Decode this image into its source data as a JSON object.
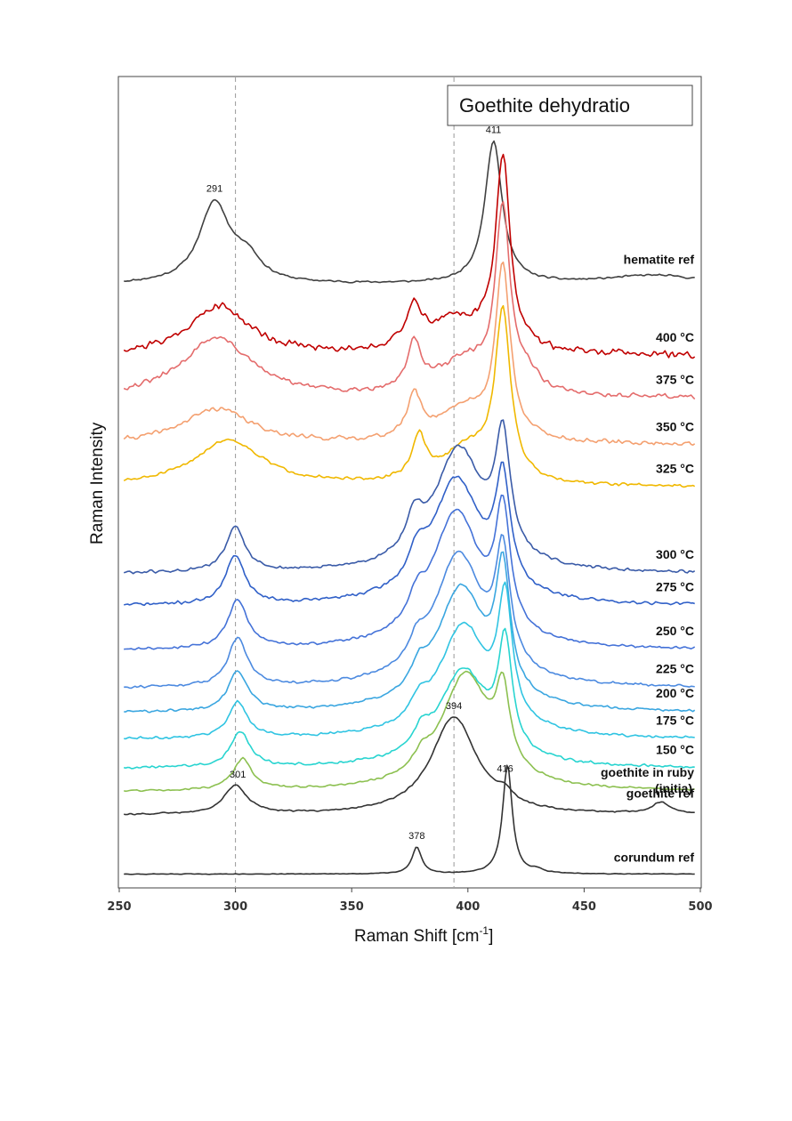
{
  "chart_data": {
    "type": "line",
    "title": "Goethite dehydratio",
    "xlabel": "Raman Shift [cm",
    "xlabel_sup": "-1",
    "xlabel_end": "]",
    "ylabel": "Raman Intensity",
    "xlim": [
      250,
      500
    ],
    "xticks": [
      "250",
      "300",
      "350",
      "400",
      "450",
      "500"
    ],
    "reference_lines_x": [
      300,
      394
    ],
    "series": [
      {
        "name": "hematite ref",
        "label": "hematite ref",
        "color": "#404040",
        "offset": 15.2,
        "noise": 0.3,
        "seed": 11,
        "peaks": [
          {
            "x": 291,
            "h": 3.6,
            "w": 8
          },
          {
            "x": 305,
            "h": 1.0,
            "w": 7
          },
          {
            "x": 411,
            "h": 6.4,
            "w": 4.5
          },
          {
            "x": 480,
            "h": 0.4,
            "w": 25
          }
        ]
      },
      {
        "name": "400 °C",
        "label": "400 °C",
        "color": "#c00000",
        "offset": 12.0,
        "noise": 1.1,
        "seed": 21,
        "peaks": [
          {
            "x": 293,
            "h": 2.2,
            "w": 16
          },
          {
            "x": 377,
            "h": 1.8,
            "w": 4
          },
          {
            "x": 395,
            "h": 1.5,
            "w": 15
          },
          {
            "x": 415,
            "h": 8.5,
            "w": 3.8
          }
        ]
      },
      {
        "name": "375 °C",
        "label": "375 °C",
        "color": "#e46c6c",
        "offset": 10.1,
        "noise": 0.8,
        "seed": 31,
        "peaks": [
          {
            "x": 292,
            "h": 2.7,
            "w": 18
          },
          {
            "x": 377,
            "h": 2.1,
            "w": 3.6
          },
          {
            "x": 398,
            "h": 1.5,
            "w": 14
          },
          {
            "x": 415,
            "h": 8.0,
            "w": 3.8
          },
          {
            "x": 426,
            "h": 0.7,
            "w": 5
          }
        ]
      },
      {
        "name": "350 °C",
        "label": "350 °C",
        "color": "#f4a070",
        "offset": 8.0,
        "noise": 0.7,
        "seed": 41,
        "peaks": [
          {
            "x": 292,
            "h": 1.6,
            "w": 18
          },
          {
            "x": 377,
            "h": 1.9,
            "w": 3.6
          },
          {
            "x": 398,
            "h": 1.5,
            "w": 14
          },
          {
            "x": 415,
            "h": 7.6,
            "w": 3.8
          }
        ]
      },
      {
        "name": "325 °C",
        "label": "325 °C",
        "color": "#f0b800",
        "offset": 6.1,
        "noise": 0.5,
        "seed": 51,
        "peaks": [
          {
            "x": 297,
            "h": 2.1,
            "w": 18
          },
          {
            "x": 379,
            "h": 1.9,
            "w": 3.6
          },
          {
            "x": 400,
            "h": 1.6,
            "w": 13
          },
          {
            "x": 415,
            "h": 7.4,
            "w": 4
          }
        ]
      },
      {
        "name": "300 °C",
        "label": "300 °C",
        "color": "#3a5ba8",
        "offset": 2.2,
        "noise": 0.5,
        "seed": 61,
        "peaks": [
          {
            "x": 300,
            "h": 2.0,
            "w": 5
          },
          {
            "x": 377,
            "h": 1.5,
            "w": 4
          },
          {
            "x": 396,
            "h": 5.5,
            "w": 13
          },
          {
            "x": 415,
            "h": 5.2,
            "w": 3.8
          }
        ]
      },
      {
        "name": "275 °C",
        "label": "275 °C",
        "color": "#3060c8",
        "offset": 0.75,
        "noise": 0.5,
        "seed": 71,
        "peaks": [
          {
            "x": 300,
            "h": 2.2,
            "w": 5
          },
          {
            "x": 378,
            "h": 1.2,
            "w": 4
          },
          {
            "x": 395,
            "h": 5.6,
            "w": 13
          },
          {
            "x": 415,
            "h": 4.8,
            "w": 3.8
          }
        ]
      },
      {
        "name": "250 °C",
        "label": "250 °C",
        "color": "#4472d8",
        "offset": -1.25,
        "noise": 0.4,
        "seed": 81,
        "peaks": [
          {
            "x": 301,
            "h": 2.2,
            "w": 5
          },
          {
            "x": 378,
            "h": 1.0,
            "w": 4
          },
          {
            "x": 395,
            "h": 6.1,
            "w": 13
          },
          {
            "x": 415,
            "h": 5.2,
            "w": 3.8
          }
        ]
      },
      {
        "name": "225 °C",
        "label": "225 °C",
        "color": "#4c8ae0",
        "offset": -2.95,
        "noise": 0.4,
        "seed": 91,
        "peaks": [
          {
            "x": 301,
            "h": 2.2,
            "w": 5
          },
          {
            "x": 378,
            "h": 0.9,
            "w": 4
          },
          {
            "x": 396,
            "h": 5.9,
            "w": 13
          },
          {
            "x": 415,
            "h": 5.0,
            "w": 3.8
          }
        ]
      },
      {
        "name": "200 °C",
        "label": "200 °C",
        "color": "#3aa6e0",
        "offset": -4.05,
        "noise": 0.4,
        "seed": 101,
        "peaks": [
          {
            "x": 301,
            "h": 1.8,
            "w": 5
          },
          {
            "x": 379,
            "h": 0.9,
            "w": 4
          },
          {
            "x": 397,
            "h": 5.5,
            "w": 13
          },
          {
            "x": 415,
            "h": 5.4,
            "w": 3.6
          }
        ]
      },
      {
        "name": "175 °C",
        "label": "175 °C",
        "color": "#30c4e2",
        "offset": -5.25,
        "noise": 0.4,
        "seed": 111,
        "peaks": [
          {
            "x": 301,
            "h": 1.6,
            "w": 5
          },
          {
            "x": 379,
            "h": 0.8,
            "w": 4
          },
          {
            "x": 398,
            "h": 5.0,
            "w": 13
          },
          {
            "x": 416,
            "h": 5.4,
            "w": 3.6
          }
        ]
      },
      {
        "name": "150 °C",
        "label": "150 °C",
        "color": "#28d4d0",
        "offset": -6.55,
        "noise": 0.4,
        "seed": 121,
        "peaks": [
          {
            "x": 302,
            "h": 1.6,
            "w": 5
          },
          {
            "x": 380,
            "h": 0.8,
            "w": 4
          },
          {
            "x": 398,
            "h": 4.3,
            "w": 13
          },
          {
            "x": 416,
            "h": 4.8,
            "w": 3.6
          }
        ]
      },
      {
        "name": "goethite in ruby (initia)",
        "label": "goethite in ruby",
        "label2": "(initia)",
        "color": "#8cc050",
        "offset": -7.6,
        "noise": 0.3,
        "seed": 131,
        "peaks": [
          {
            "x": 303,
            "h": 1.4,
            "w": 5
          },
          {
            "x": 380,
            "h": 0.6,
            "w": 4
          },
          {
            "x": 399,
            "h": 5.2,
            "w": 13
          },
          {
            "x": 415,
            "h": 3.3,
            "w": 3.6
          }
        ]
      },
      {
        "name": "goethite ref",
        "label": "goethite ref",
        "color": "#333333",
        "offset": -8.65,
        "noise": 0.25,
        "seed": 141,
        "peaks": [
          {
            "x": 300,
            "h": 1.3,
            "w": 6
          },
          {
            "x": 394,
            "h": 4.4,
            "w": 12
          },
          {
            "x": 416,
            "h": 0.4,
            "w": 4
          },
          {
            "x": 483,
            "h": 0.5,
            "w": 5
          }
        ]
      },
      {
        "name": "corundum ref",
        "label": "corundum ref",
        "color": "#333333",
        "offset": -11.3,
        "noise": 0.1,
        "seed": 151,
        "peaks": [
          {
            "x": 378,
            "h": 1.2,
            "w": 2.5
          },
          {
            "x": 417,
            "h": 4.9,
            "w": 2.5
          },
          {
            "x": 430,
            "h": 0.15,
            "w": 3
          }
        ]
      }
    ],
    "peak_labels": [
      {
        "text": "291",
        "x": 291,
        "series": "hematite ref"
      },
      {
        "text": "411",
        "x": 411,
        "series": "hematite ref"
      },
      {
        "text": "394",
        "x": 394,
        "series": "goethite ref"
      },
      {
        "text": "301",
        "x": 301,
        "series": "goethite ref"
      },
      {
        "text": "416",
        "x": 416,
        "series": "corundum ref"
      },
      {
        "text": "378",
        "x": 378,
        "series": "corundum ref"
      }
    ]
  }
}
